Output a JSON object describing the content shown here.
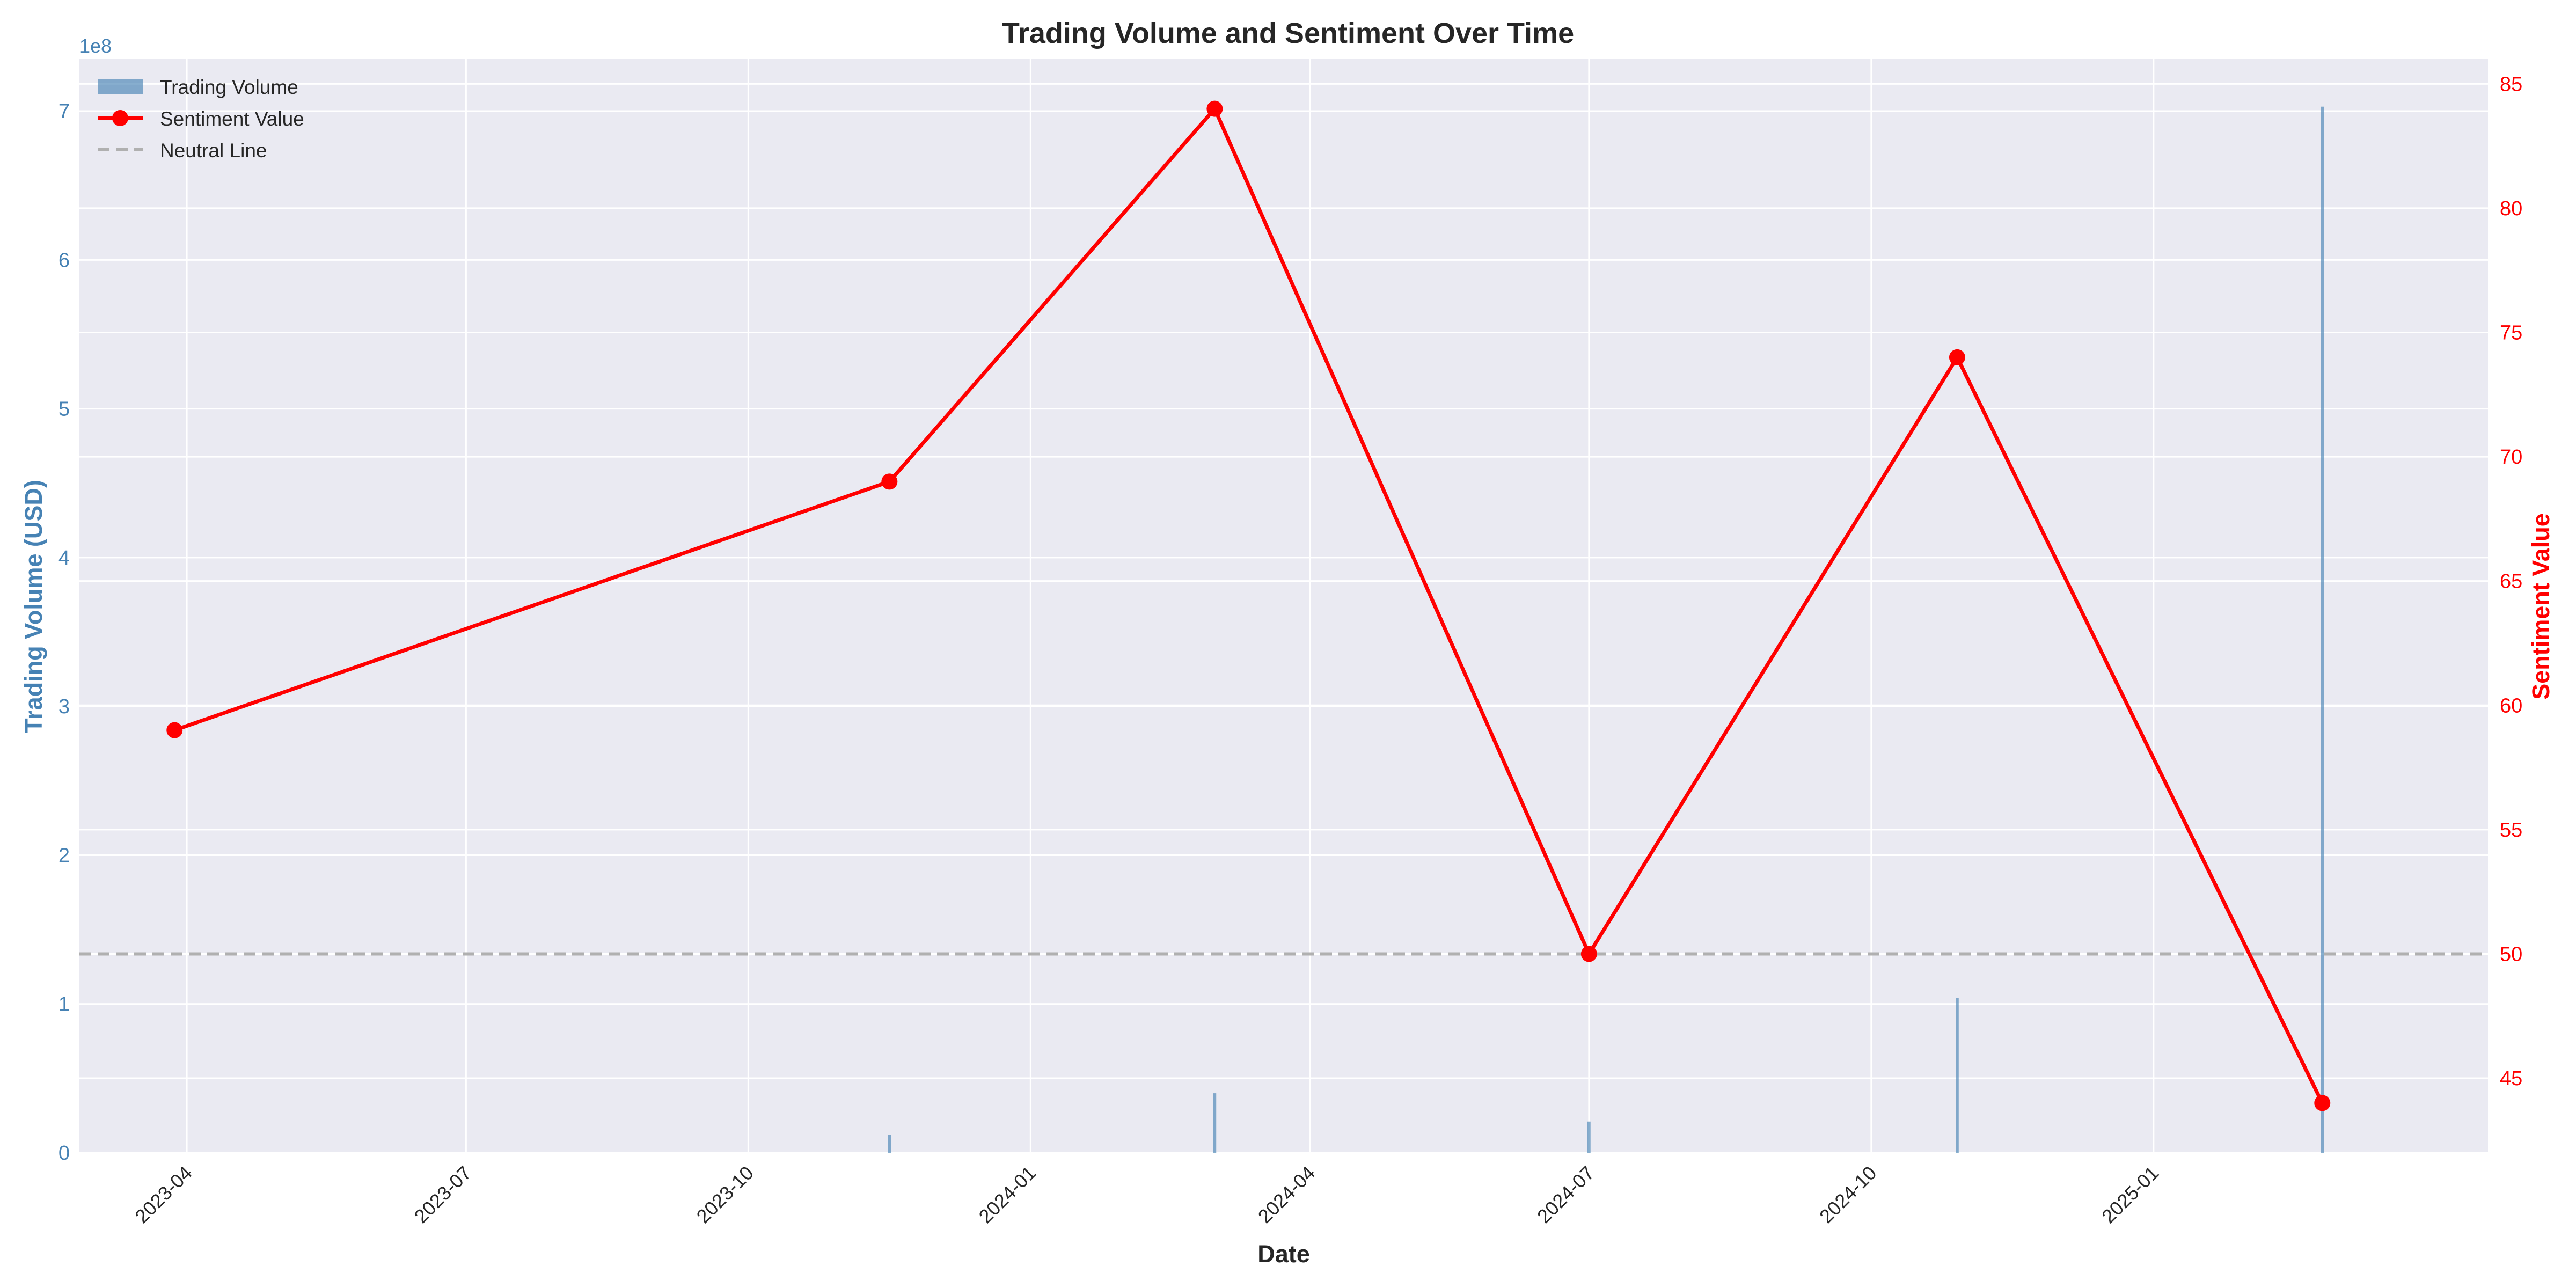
{
  "chart_data": {
    "type": "bar+line",
    "title": "Trading Volume and Sentiment Over Time",
    "xlabel": "Date",
    "ylabel_left": "Trading Volume (USD)",
    "ylabel_right": "Sentiment Value",
    "left_axis_offset_label": "1e8",
    "xlim": [
      "2023-02-25",
      "2025-04-20"
    ],
    "ylim_left": [
      0,
      735000000
    ],
    "ylim_right": [
      42.0,
      86.0
    ],
    "x_ticks": [
      "2023-04",
      "2023-07",
      "2023-10",
      "2024-01",
      "2024-04",
      "2024-07",
      "2024-10",
      "2025-01"
    ],
    "y_ticks_left": [
      "0",
      "1",
      "2",
      "3",
      "4",
      "5",
      "6",
      "7"
    ],
    "y_ticks_right": [
      "45",
      "50",
      "55",
      "60",
      "65",
      "70",
      "75",
      "80",
      "85"
    ],
    "legend": {
      "placement": "top-left",
      "entries": [
        "Trading Volume",
        "Sentiment Value",
        "Neutral Line"
      ]
    },
    "grid": true,
    "series": [
      {
        "name": "Trading Volume",
        "kind": "bar",
        "axis": "left",
        "color": "#4682b4",
        "points": [
          {
            "x": "2023-03-28",
            "y": 0
          },
          {
            "x": "2023-11-16",
            "y": 12000000
          },
          {
            "x": "2024-03-01",
            "y": 40000000
          },
          {
            "x": "2024-07-01",
            "y": 21000000
          },
          {
            "x": "2024-10-29",
            "y": 104000000
          },
          {
            "x": "2025-02-25",
            "y": 703000000
          }
        ]
      },
      {
        "name": "Sentiment Value",
        "kind": "line",
        "axis": "right",
        "color": "#ff0000",
        "points": [
          {
            "x": "2023-03-28",
            "y": 59
          },
          {
            "x": "2023-11-16",
            "y": 69
          },
          {
            "x": "2024-03-01",
            "y": 84
          },
          {
            "x": "2024-07-01",
            "y": 50
          },
          {
            "x": "2024-10-29",
            "y": 74
          },
          {
            "x": "2025-02-25",
            "y": 44
          }
        ]
      },
      {
        "name": "Neutral Line",
        "kind": "hline",
        "axis": "right",
        "color": "#b0b0b0",
        "y": 50
      }
    ],
    "colors": {
      "plot_background": "#eaeaf2",
      "grid": "#ffffff",
      "left_axis": "#4682b4",
      "right_axis": "#ff0000",
      "text": "#262626"
    }
  }
}
